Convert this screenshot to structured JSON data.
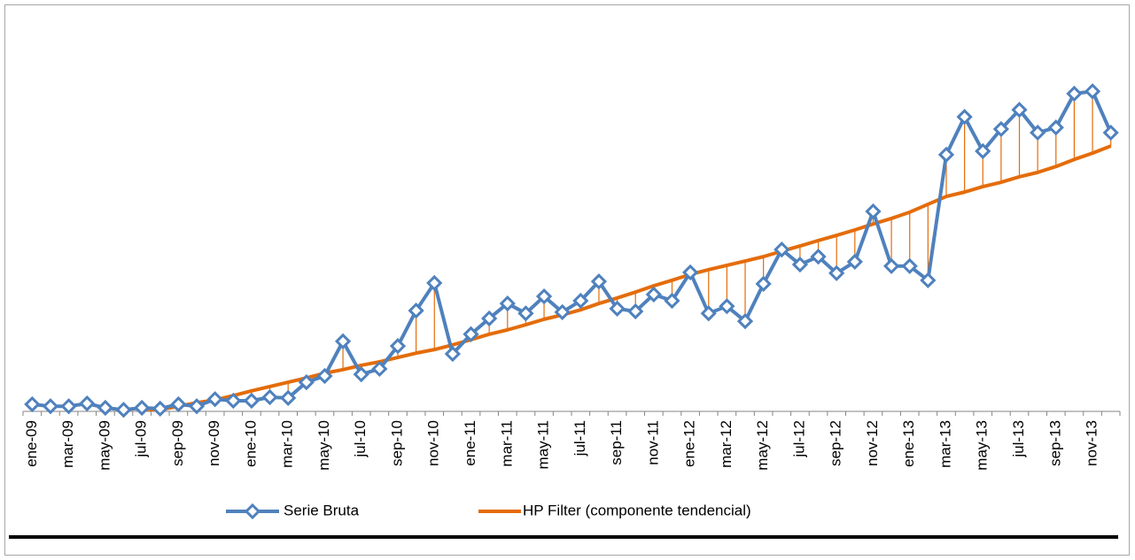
{
  "chart_data": {
    "type": "line",
    "categories": [
      "ene-09",
      null,
      "mar-09",
      null,
      "may-09",
      null,
      "jul-09",
      null,
      "sep-09",
      null,
      "nov-09",
      null,
      "ene-10",
      null,
      "mar-10",
      null,
      "may-10",
      null,
      "jul-10",
      null,
      "sep-10",
      null,
      "nov-10",
      null,
      "ene-11",
      null,
      "mar-11",
      null,
      "may-11",
      null,
      "jul-11",
      null,
      "sep-11",
      null,
      "nov-11",
      null,
      "ene-12",
      null,
      "mar-12",
      null,
      "may-12",
      null,
      "jul-12",
      null,
      "sep-12",
      null,
      "nov-12",
      null,
      "ene-13",
      null,
      "mar-13",
      null,
      "may-13",
      null,
      "jul-13",
      null,
      "sep-13",
      null,
      "nov-13",
      null
    ],
    "series": [
      {
        "name": "Serie Bruta",
        "color": "#4f81bd",
        "marker": "diamond",
        "values": [
          1.8,
          1.3,
          1.3,
          2.0,
          0.9,
          0.4,
          0.9,
          0.7,
          1.8,
          1.3,
          3.1,
          2.7,
          2.7,
          3.6,
          3.4,
          7.4,
          9.0,
          17.8,
          9.4,
          10.8,
          16.6,
          25.6,
          32.6,
          14.6,
          19.6,
          23.6,
          27.4,
          24.9,
          29.2,
          25.2,
          28.1,
          33.0,
          26.1,
          25.4,
          29.7,
          28.1,
          35.3,
          24.9,
          26.7,
          22.9,
          32.4,
          41.1,
          37.3,
          39.3,
          35.1,
          38.0,
          50.8,
          36.9,
          36.9,
          33.3,
          65.2,
          74.8,
          66.1,
          71.7,
          76.6,
          70.8,
          72.1,
          80.7,
          81.3,
          70.8
        ]
      },
      {
        "name": "HP Filter (componente tendencial)",
        "color": "#e46c0a",
        "values": [
          -1.6,
          -1.6,
          -1.3,
          -1.1,
          -0.9,
          -0.7,
          -0.4,
          0.4,
          1.3,
          2.2,
          2.9,
          4.0,
          5.2,
          6.3,
          7.4,
          8.5,
          9.7,
          10.6,
          11.7,
          12.6,
          13.7,
          14.8,
          15.7,
          16.9,
          18.2,
          19.6,
          20.7,
          22.0,
          23.4,
          24.5,
          25.8,
          27.4,
          28.8,
          30.3,
          31.9,
          33.3,
          34.8,
          36.0,
          37.1,
          38.2,
          39.3,
          40.7,
          42.0,
          43.4,
          44.7,
          46.1,
          47.6,
          49.0,
          50.6,
          52.6,
          54.6,
          55.7,
          57.1,
          58.2,
          59.6,
          60.7,
          62.2,
          64.0,
          65.6,
          67.4
        ]
      }
    ],
    "ylim": [
      0,
      100
    ],
    "legend": "bottom"
  }
}
